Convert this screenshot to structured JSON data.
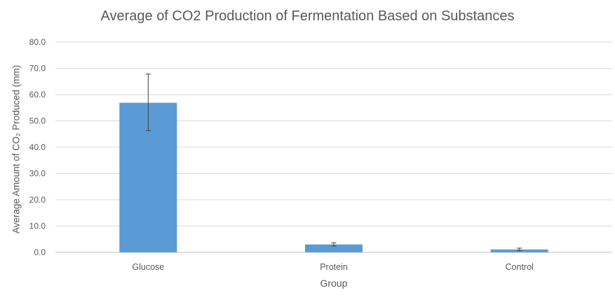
{
  "chart_data": {
    "type": "bar",
    "title": "Average of CO2 Production of Fermentation Based on Substances",
    "xlabel": "Group",
    "ylabel": "Average Amount of CO₂ Produced (mm)",
    "categories": [
      "Glucose",
      "Protein",
      "Control"
    ],
    "values": [
      56.9,
      3.0,
      1.1
    ],
    "error_bars": [
      {
        "low": 46.3,
        "high": 67.8
      },
      {
        "low": 2.4,
        "high": 3.6
      },
      {
        "low": 0.6,
        "high": 1.6
      }
    ],
    "ylim": [
      0,
      80
    ],
    "yticks": [
      "0.0",
      "10.0",
      "20.0",
      "30.0",
      "40.0",
      "50.0",
      "60.0",
      "70.0",
      "80.0"
    ],
    "grid": true,
    "legend": "none",
    "colors": {
      "bar": "#5b9bd5",
      "grid": "#d9d9d9",
      "text": "#595959",
      "error": "#404040"
    }
  }
}
